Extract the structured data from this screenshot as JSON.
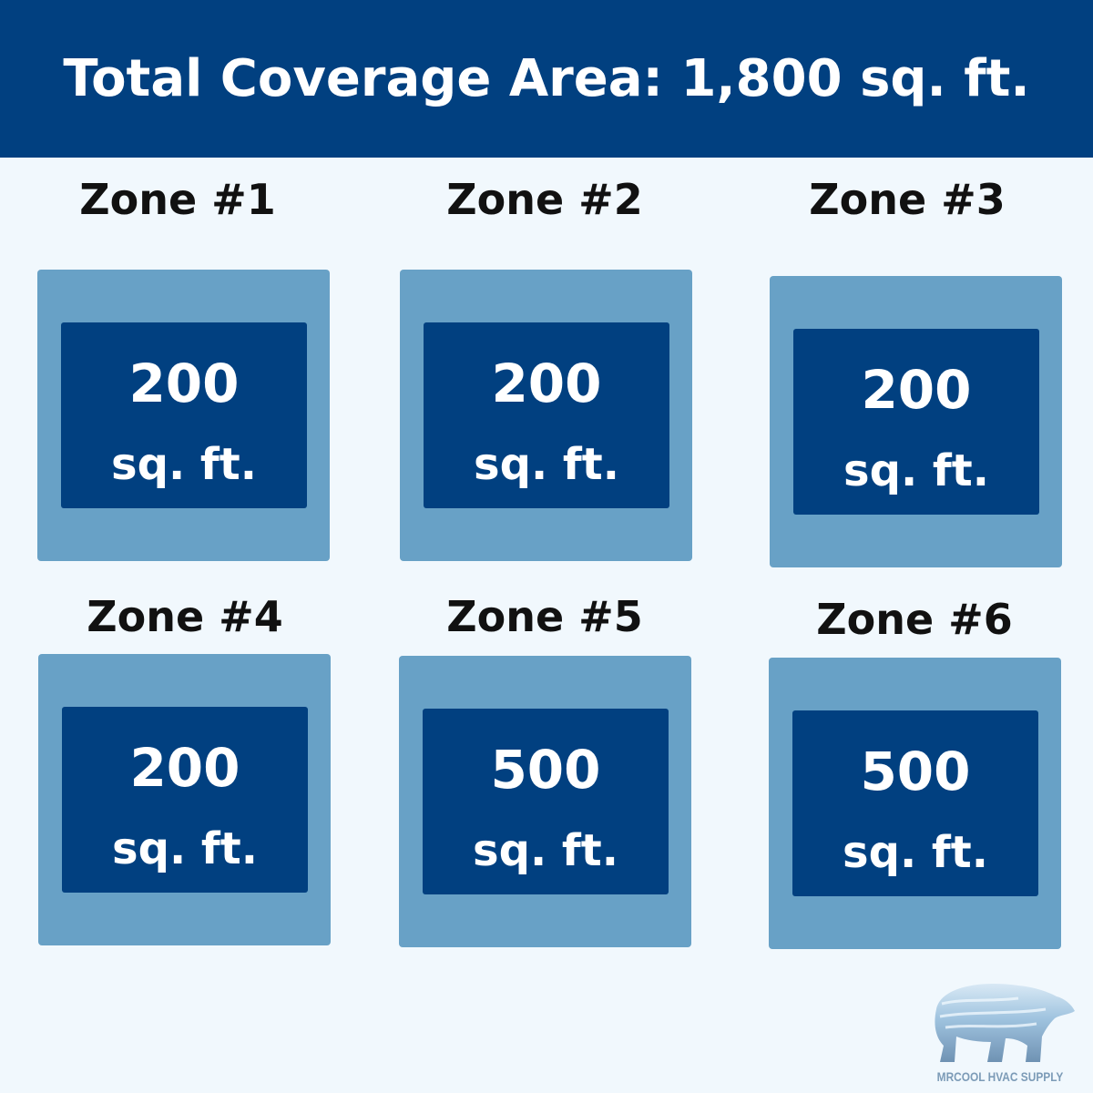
{
  "header": {
    "title": "Total Coverage Area: 1,800 sq. ft."
  },
  "colors": {
    "header": "#014080",
    "outer_box": "#68a1c6",
    "inner_box": "#014080",
    "background": "#f1f8fd"
  },
  "zones": [
    {
      "label": "Zone #1",
      "value": "200",
      "unit": "sq. ft."
    },
    {
      "label": "Zone #2",
      "value": "200",
      "unit": "sq. ft."
    },
    {
      "label": "Zone #3",
      "value": "200",
      "unit": "sq. ft."
    },
    {
      "label": "Zone #4",
      "value": "200",
      "unit": "sq. ft."
    },
    {
      "label": "Zone #5",
      "value": "500",
      "unit": "sq. ft."
    },
    {
      "label": "Zone #6",
      "value": "500",
      "unit": "sq. ft."
    }
  ],
  "logo": {
    "text": "MRCOOL HVAC SUPPLY",
    "icon": "polar-bear-icon"
  }
}
